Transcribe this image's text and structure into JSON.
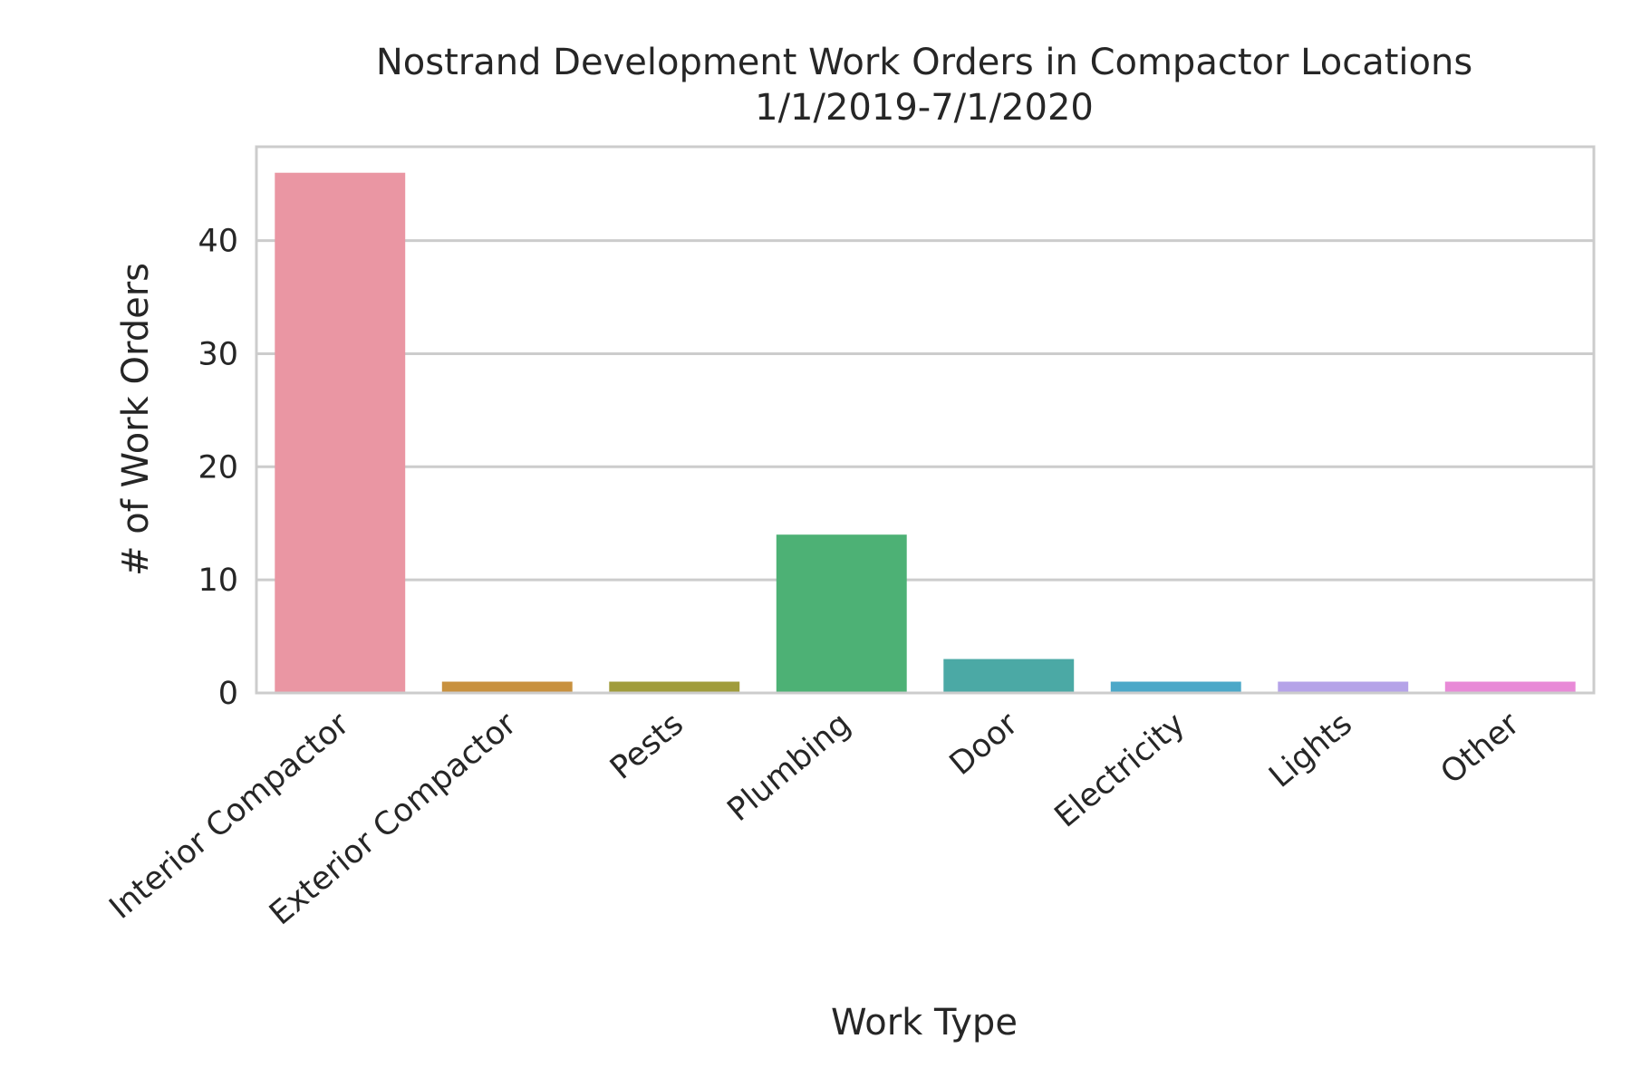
{
  "chart_data": {
    "type": "bar",
    "title": "Nostrand Development Work Orders in Compactor Locations",
    "subtitle": "1/1/2019-7/1/2020",
    "xlabel": "Work Type",
    "ylabel": "# of Work Orders",
    "categories": [
      "Interior Compactor",
      "Exterior Compactor",
      "Pests",
      "Plumbing",
      "Door",
      "Electricity",
      "Lights",
      "Other"
    ],
    "values": [
      46,
      1,
      1,
      14,
      3,
      1,
      1,
      1
    ],
    "colors": [
      "#ea96a3",
      "#c8913f",
      "#a09c3c",
      "#4db175",
      "#4ba9a5",
      "#4ca8c8",
      "#b5a3e8",
      "#e88ad7"
    ],
    "ylim": [
      0,
      48.3
    ],
    "yticks": [
      0,
      10,
      20,
      30,
      40
    ],
    "grid": "horizontal",
    "legend": "none"
  }
}
